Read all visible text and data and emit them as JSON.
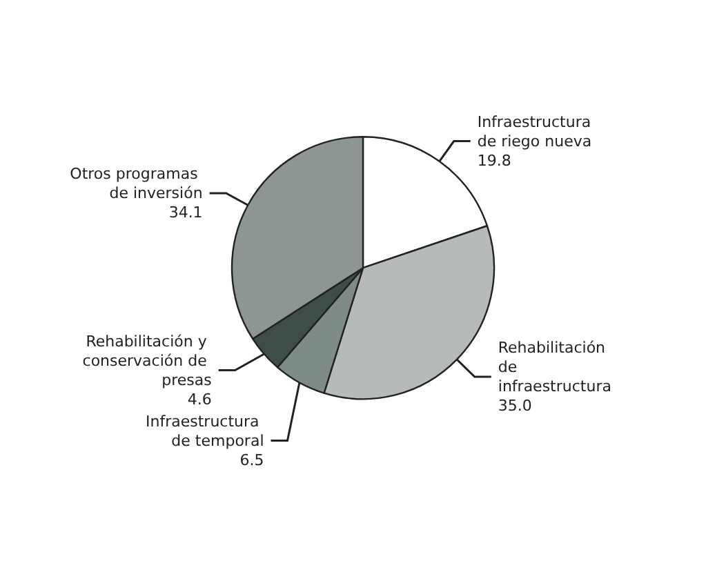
{
  "chart_data": {
    "type": "pie",
    "categories": [
      "Infraestructura de riego nueva",
      "Rehabilitación de infraestructura",
      "Infraestructura de temporal",
      "Rehabilitación y conservación de presas",
      "Otros programas de inversión"
    ],
    "values": [
      19.8,
      35.0,
      6.5,
      4.6,
      34.1
    ],
    "value_labels": [
      "19.8",
      "35.0",
      "6.5",
      "4.6",
      "34.1"
    ],
    "colors": [
      "#ffffff",
      "#b6bab8",
      "#7f8b85",
      "#3f4d47",
      "#8d9691"
    ]
  }
}
